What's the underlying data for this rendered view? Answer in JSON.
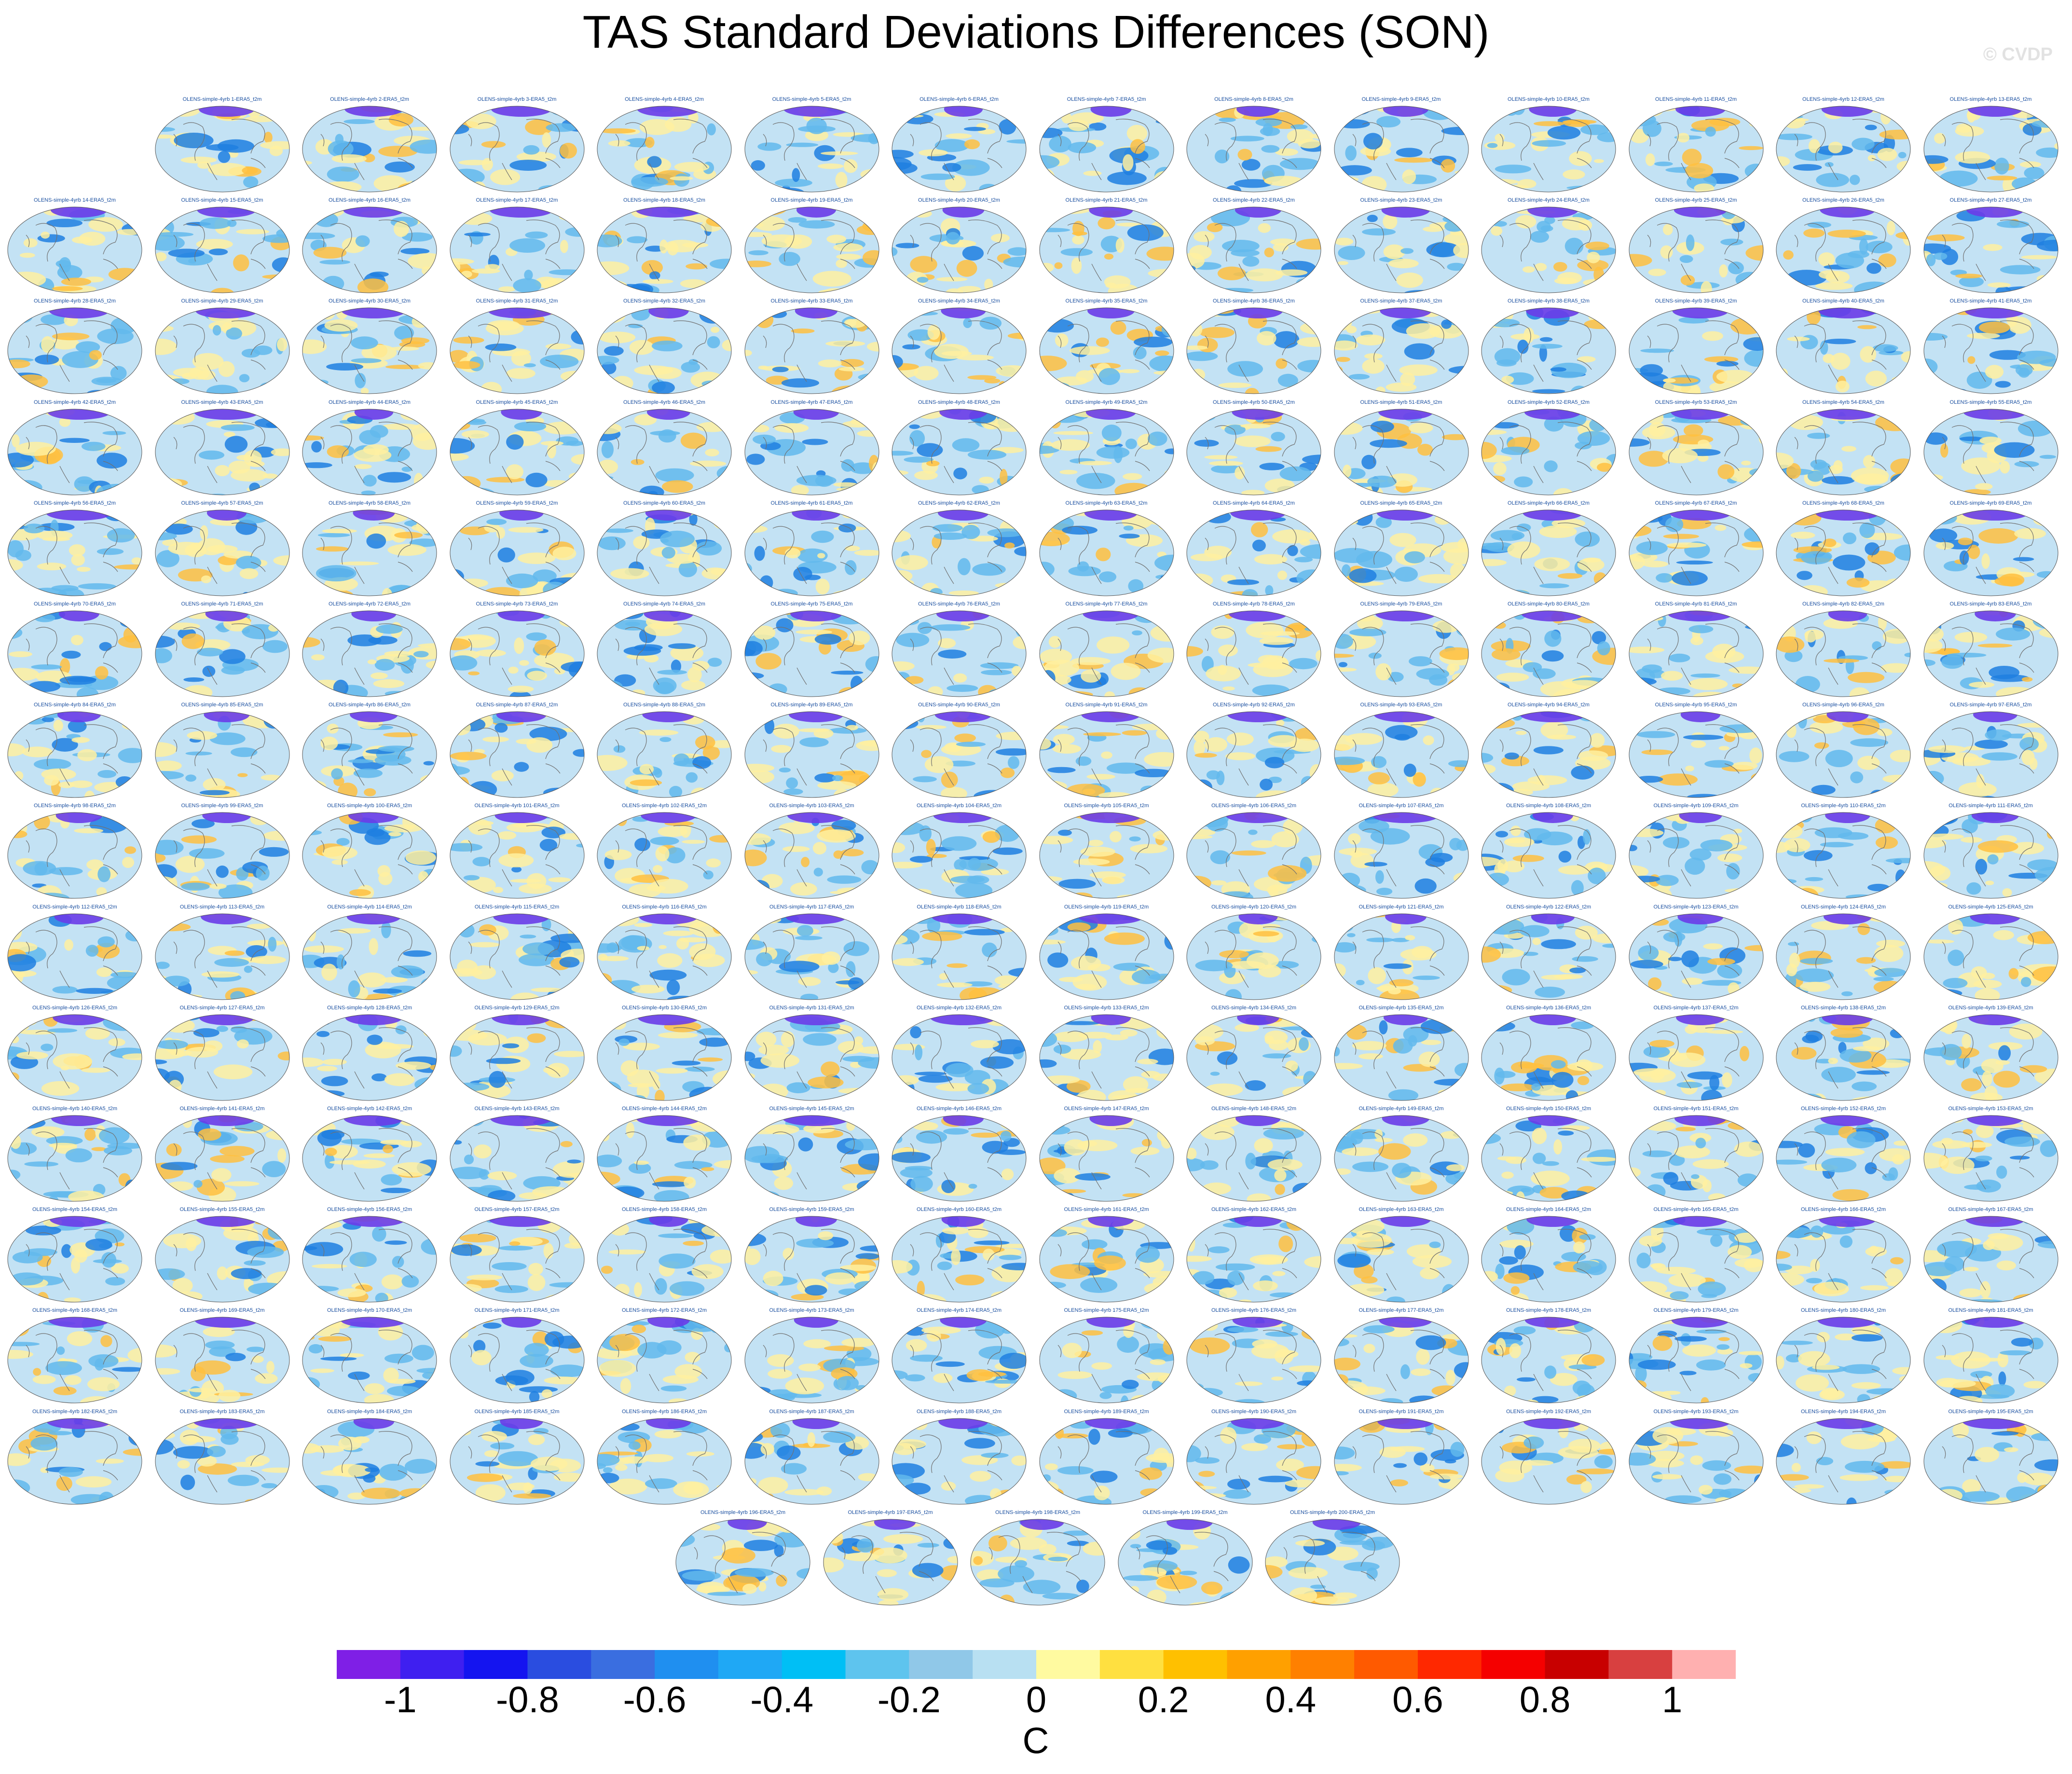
{
  "title": "TAS Standard Deviations Differences (SON)",
  "watermark": "© CVDP",
  "panel_title_template": "OLENS-simple-4yrb {n}-ERA5_t2m",
  "panel_count": 200,
  "panel_rows": [
    13,
    14,
    14,
    14,
    14,
    14,
    14,
    14,
    14,
    14,
    14,
    14,
    14,
    14,
    5
  ],
  "colorbar": {
    "units": "C",
    "tick_labels": [
      "-1",
      "-0.8",
      "-0.6",
      "-0.4",
      "-0.2",
      "0",
      "0.2",
      "0.4",
      "0.6",
      "0.8",
      "1"
    ],
    "colors": [
      "#7f1fe6",
      "#3f1ff0",
      "#1414f0",
      "#2a4de0",
      "#3a6ee0",
      "#1f8ff0",
      "#1fa8f5",
      "#00bff5",
      "#5ec4ee",
      "#90c8e8",
      "#b8e0f2",
      "#fffaa0",
      "#ffe040",
      "#ffc000",
      "#ffa000",
      "#ff8000",
      "#ff5a00",
      "#ff2800",
      "#f50000",
      "#c80000",
      "#d84040",
      "#ffb0b0"
    ]
  },
  "map_colors": {
    "ocean_base": "#c3e2f4",
    "blue_patch": "#62b8ec",
    "deep_blue": "#1f7fe0",
    "yellow_patch": "#fff0a0",
    "orange_patch": "#ffc040",
    "arctic": "#6a3ce8",
    "coast": "#707070"
  }
}
